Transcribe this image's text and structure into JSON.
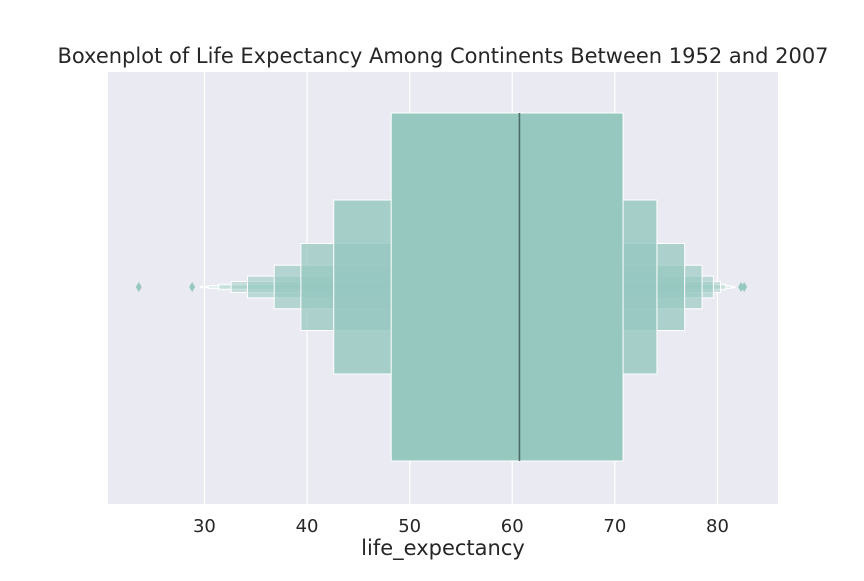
{
  "chart_data": {
    "type": "boxen",
    "title": "Boxenplot of Life Expectancy Among Continents Between 1952 and 2007",
    "xlabel": "life_expectancy",
    "ylabel": "",
    "xlim": [
      20.6,
      85.9
    ],
    "x_ticks": [
      30,
      40,
      50,
      60,
      70,
      80
    ],
    "median": 60.7,
    "boxes": [
      {
        "low": 48.2,
        "high": 70.8
      },
      {
        "low": 42.6,
        "high": 74.1
      },
      {
        "low": 39.4,
        "high": 76.8
      },
      {
        "low": 36.8,
        "high": 78.5
      },
      {
        "low": 34.2,
        "high": 79.6
      },
      {
        "low": 32.6,
        "high": 80.3
      },
      {
        "low": 31.4,
        "high": 80.8
      },
      {
        "low": 30.4,
        "high": 81.3
      },
      {
        "low": 29.6,
        "high": 81.7
      }
    ],
    "outliers": [
      23.6,
      28.8,
      82.3,
      82.6
    ],
    "grid": true,
    "colors": {
      "background": "#eaeaf2",
      "grid": "#ffffff",
      "box": "#96c8c0",
      "median": "#4d6b67",
      "text": "#262626"
    }
  }
}
